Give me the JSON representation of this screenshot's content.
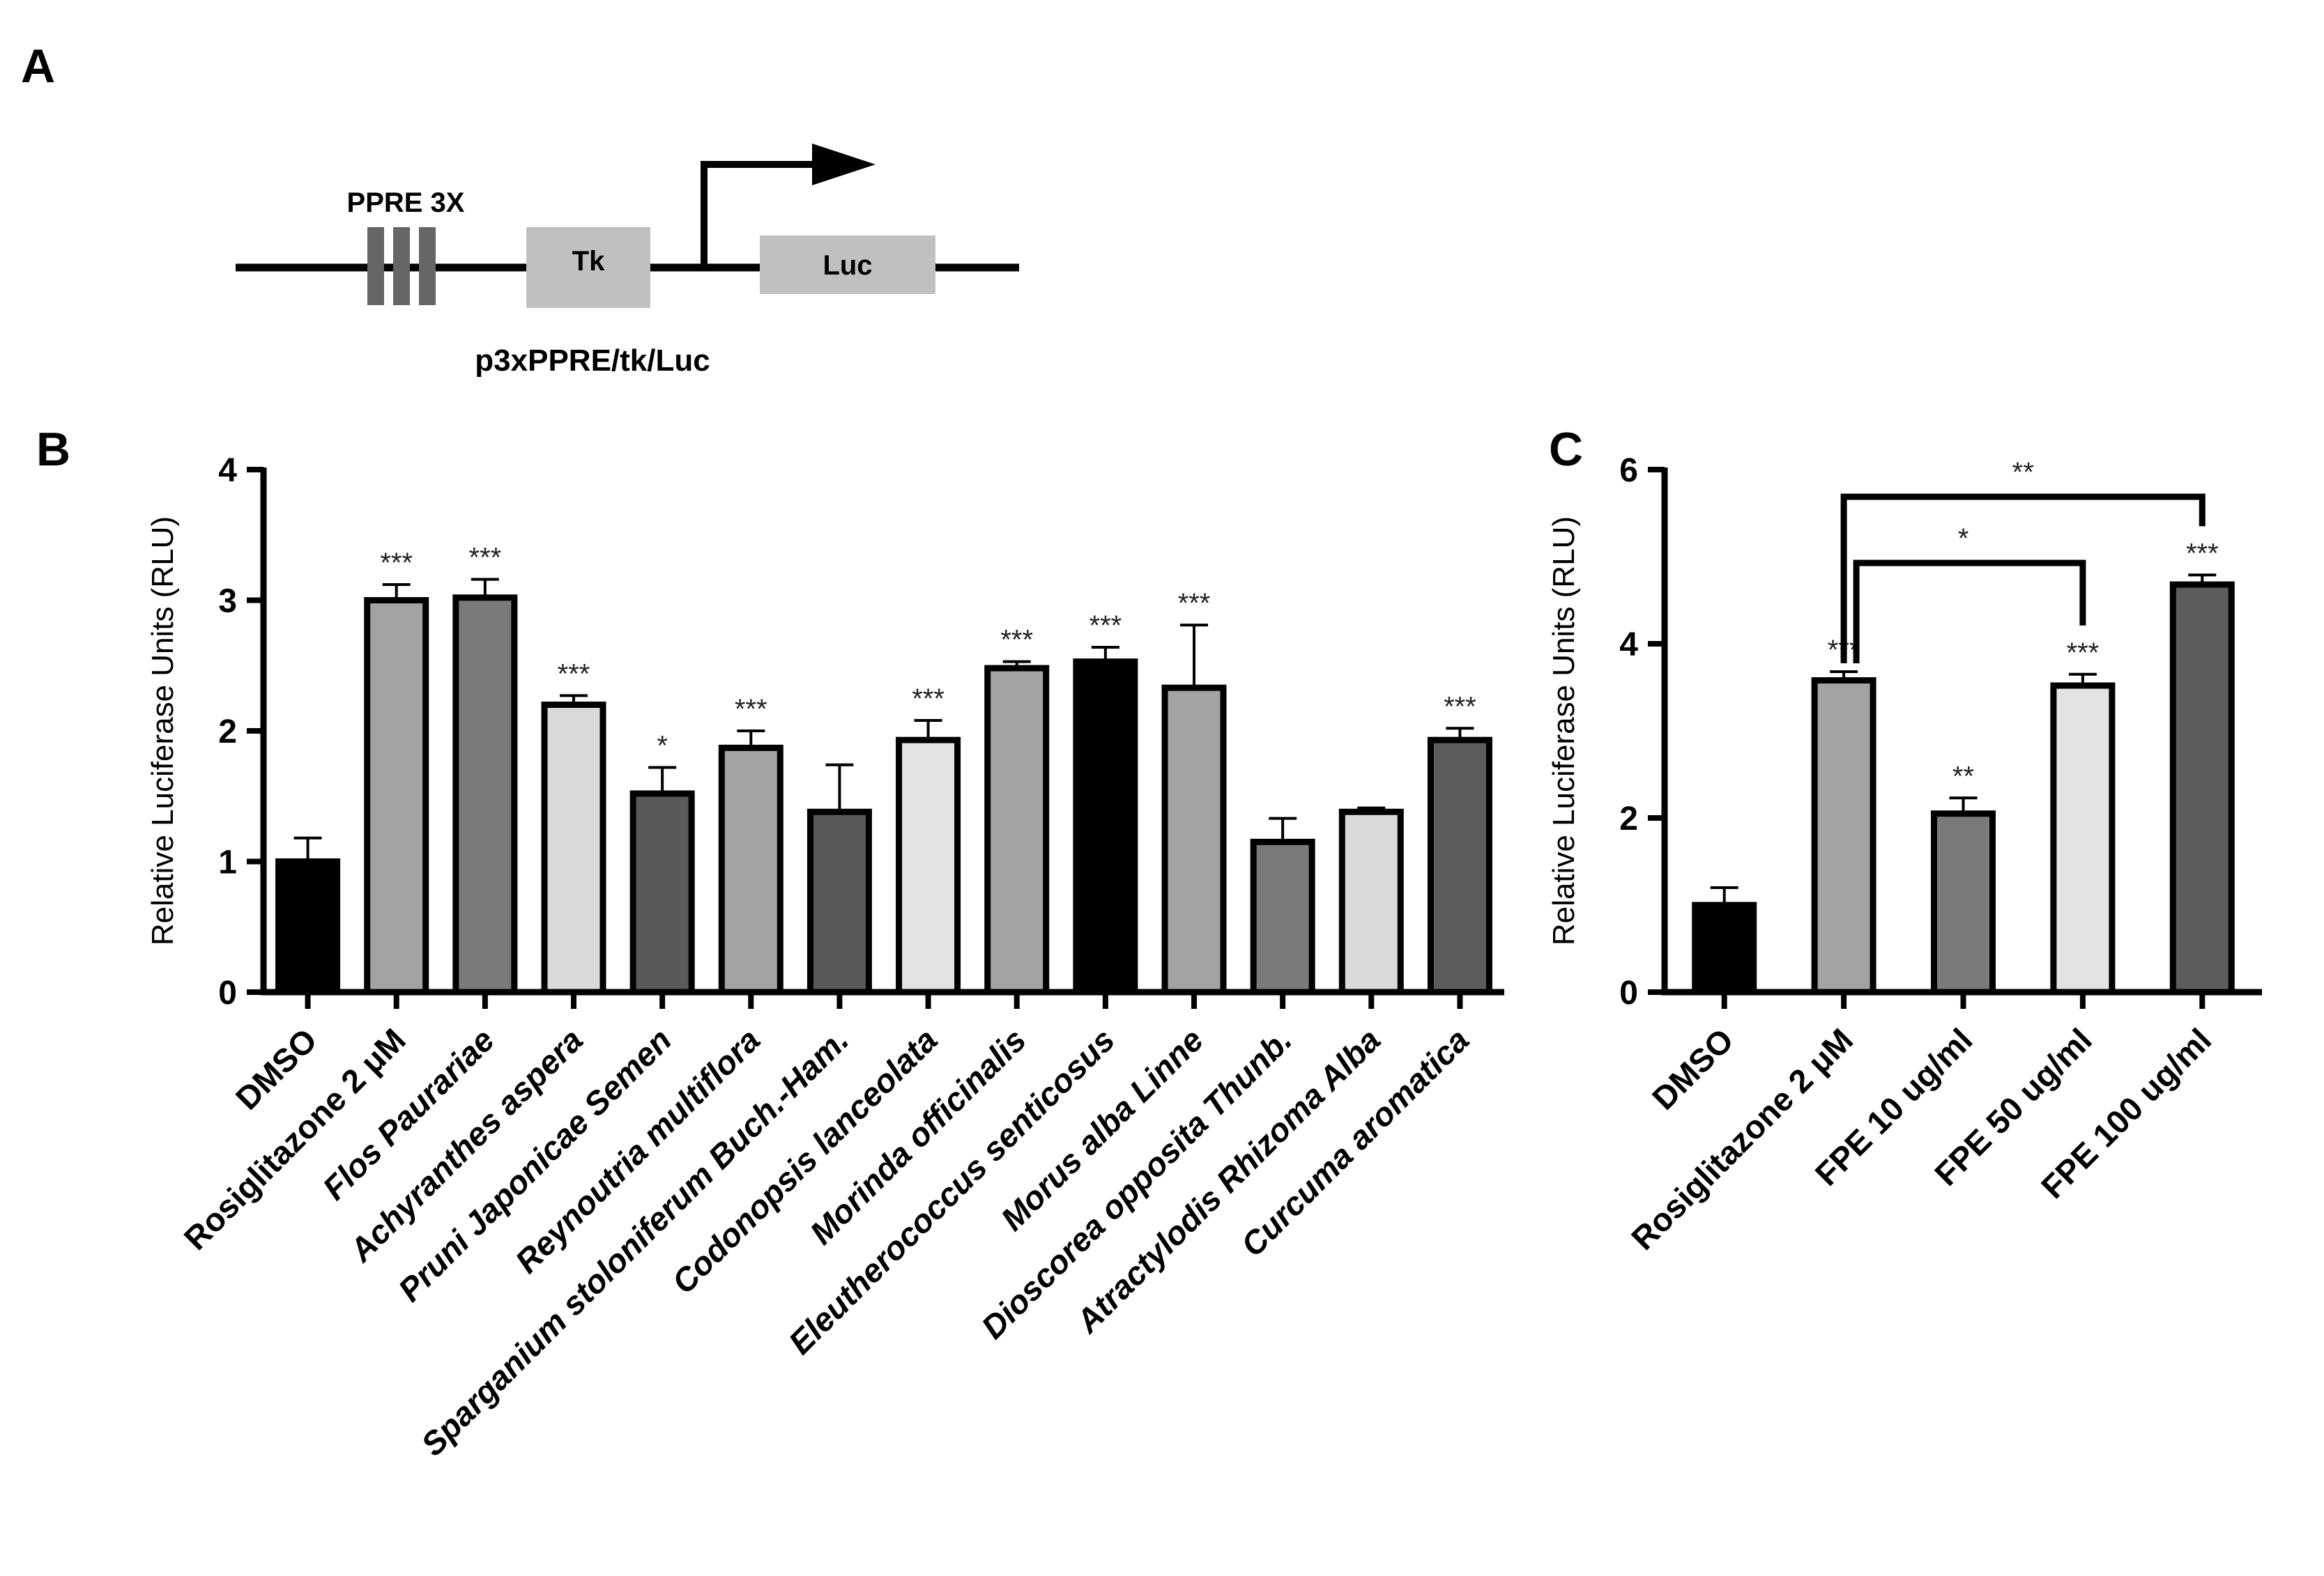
{
  "panel_a": {
    "letter": "A",
    "ppre_label": "PPRE 3X",
    "tk_label": "Tk",
    "luc_label": "Luc",
    "construct_label": "p3xPPRE/tk/Luc",
    "colors": {
      "ppre": "#666666",
      "box": "#c0c0c0",
      "line": "#000000"
    }
  },
  "chart_data": [
    {
      "panel": "B",
      "type": "bar",
      "title": "",
      "xlabel": "",
      "ylabel": "Relative Luciferase Units (RLU)",
      "ylim": [
        0,
        4
      ],
      "yticks": [
        "0",
        "1",
        "2",
        "3",
        "4"
      ],
      "categories": [
        "DMSO",
        "Rosiglitazone 2 μM",
        "Flos Paurariae",
        "Achyranthes aspera",
        "Pruni Japonicae Semen",
        "Reynoutria multiflora",
        "Sparganium stoloniferum Buch.-Ham.",
        "Codonopsis lanceolata",
        "Morinda officinalis",
        "Eleutherococcus senticosus",
        "Morus alba Linne",
        "Dioscorea opposita Thunb.",
        "Atractylodis Rhizoma Alba",
        "Curcuma aromatica"
      ],
      "italic": [
        false,
        false,
        true,
        true,
        true,
        true,
        true,
        true,
        true,
        true,
        true,
        true,
        true,
        true
      ],
      "values": [
        1.0,
        3.0,
        3.02,
        2.2,
        1.52,
        1.87,
        1.38,
        1.93,
        2.48,
        2.53,
        2.33,
        1.15,
        1.38,
        1.93
      ],
      "errors": [
        0.18,
        0.12,
        0.14,
        0.07,
        0.2,
        0.13,
        0.36,
        0.15,
        0.05,
        0.11,
        0.48,
        0.18,
        0.03,
        0.09
      ],
      "significance": [
        "",
        "***",
        "***",
        "***",
        "*",
        "***",
        "",
        "***",
        "***",
        "***",
        "***",
        "",
        "",
        "***"
      ],
      "colors": [
        "#000000",
        "#a3a3a6",
        "#7a7a7a",
        "#d9d9d9",
        "#595959",
        "#a3a3a6",
        "#595959",
        "#e3e3e3",
        "#a3a3a6",
        "#000000",
        "#a3a3a6",
        "#7a7a7a",
        "#d9d9d9",
        "#5c5c5c"
      ]
    },
    {
      "panel": "C",
      "type": "bar",
      "title": "",
      "xlabel": "",
      "ylabel": "Relative Luciferase Units (RLU)",
      "ylim": [
        0,
        6
      ],
      "yticks": [
        "0",
        "2",
        "4",
        "6"
      ],
      "categories": [
        "DMSO",
        "Rosiglitazone 2 μM",
        "FPE 10 ug/ml",
        "FPE 50 ug/ml",
        "FPE 100 ug/ml"
      ],
      "italic": [
        false,
        false,
        false,
        false,
        false
      ],
      "values": [
        1.0,
        3.58,
        2.05,
        3.52,
        4.68
      ],
      "errors": [
        0.2,
        0.1,
        0.18,
        0.13,
        0.11
      ],
      "significance": [
        "",
        "***",
        "**",
        "***",
        "***"
      ],
      "colors": [
        "#000000",
        "#a3a3a6",
        "#7a7a7a",
        "#e3e3e3",
        "#5c5c5c"
      ],
      "comparisons": [
        {
          "from": 1,
          "to": 4,
          "label": "**"
        },
        {
          "from": 1,
          "to": 3,
          "label": "*"
        }
      ]
    }
  ]
}
